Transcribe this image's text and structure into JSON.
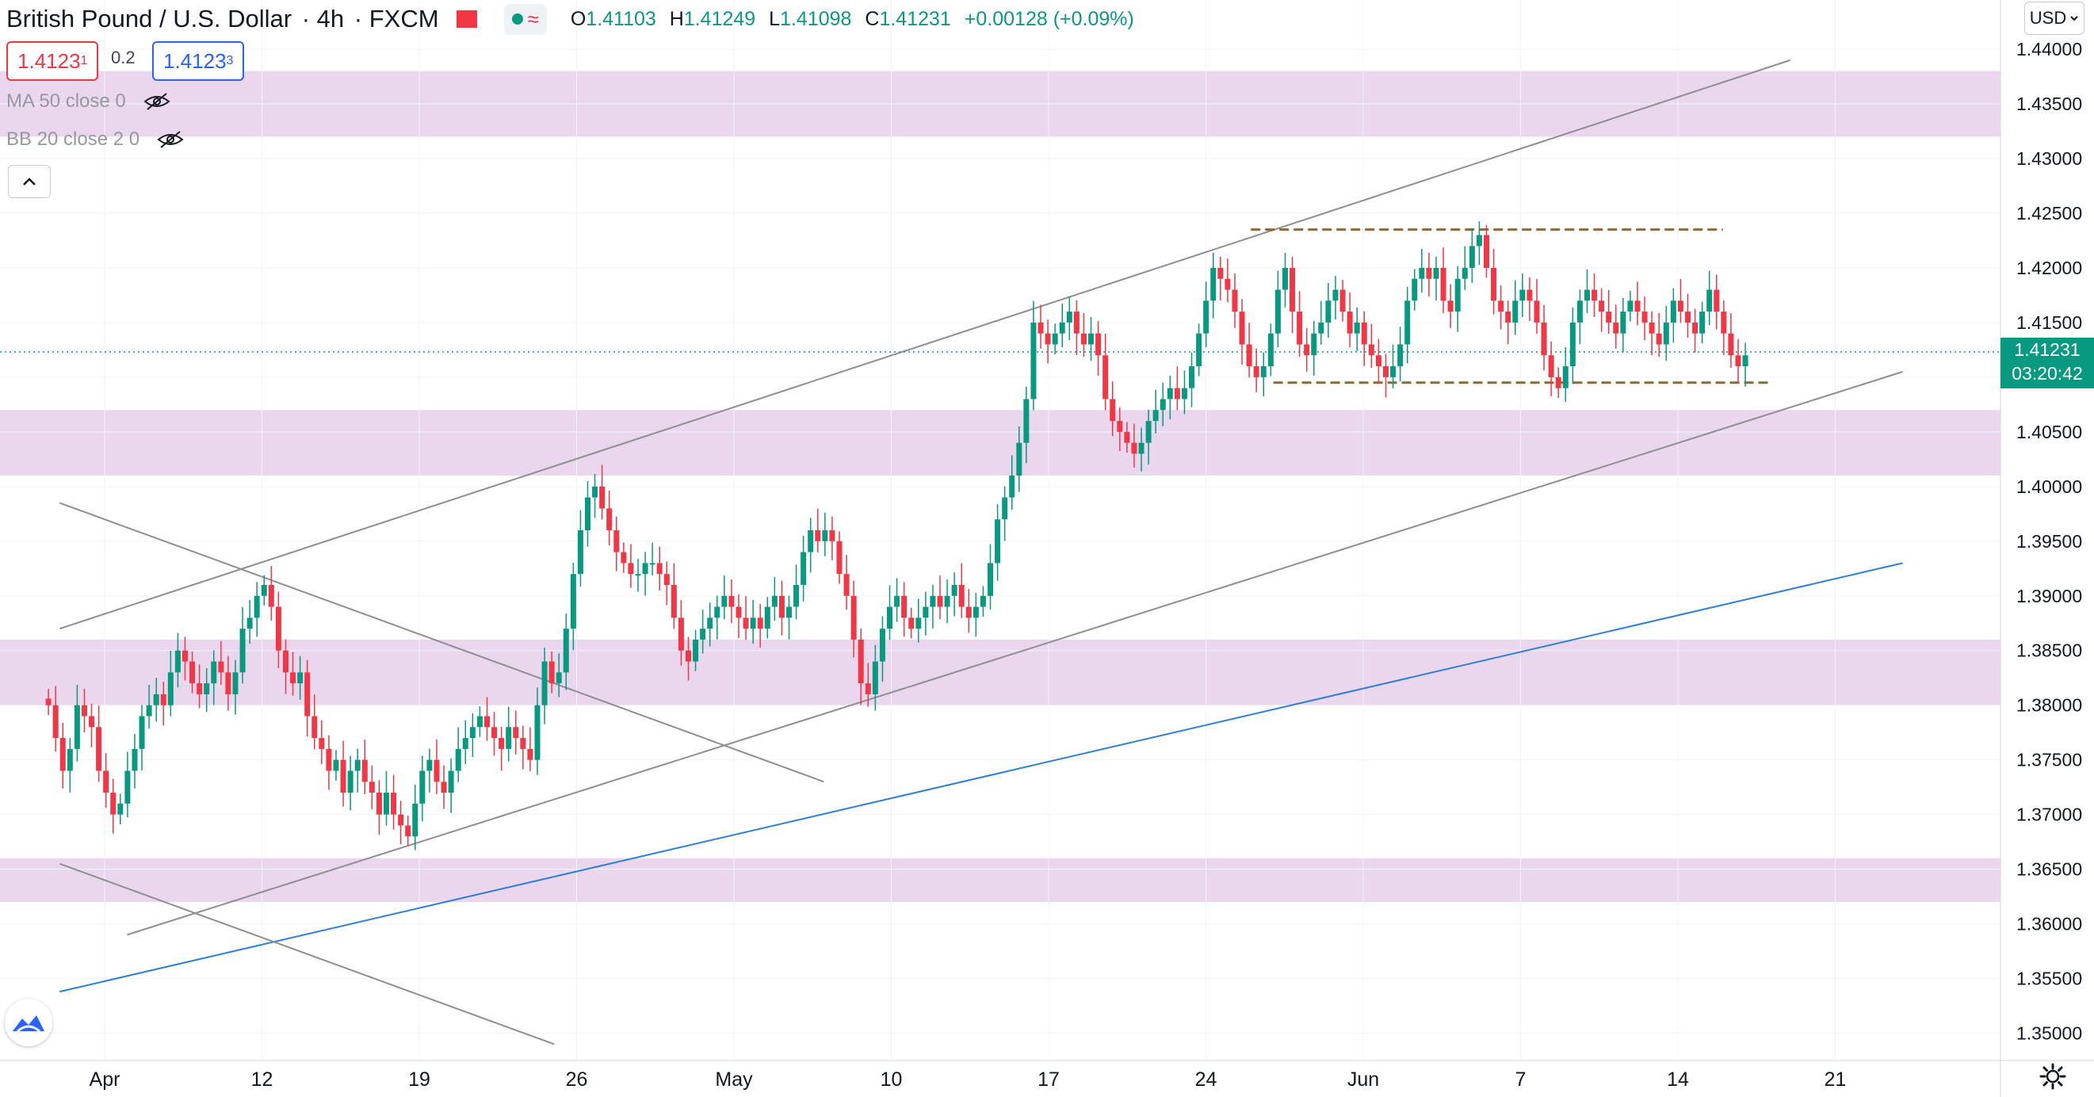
{
  "header": {
    "symbol": "British Pound / U.S. Dollar",
    "interval": "4h",
    "exchange": "FXCM",
    "ohlc": {
      "o_label": "O",
      "o": "1.41103",
      "h_label": "H",
      "h": "1.41249",
      "l_label": "L",
      "l": "1.41098",
      "c_label": "C",
      "c": "1.41231",
      "change": "+0.00128 (+0.09%)"
    }
  },
  "trade": {
    "bid_main": "1.4123",
    "bid_pip": "1",
    "spread": "0.2",
    "ask_main": "1.4123",
    "ask_pip": "3"
  },
  "indicators": {
    "ma": "MA 50 close 0",
    "bb": "BB 20 close 2 0"
  },
  "currency_button": "USD",
  "last_price": {
    "price": "1.41231",
    "countdown": "03:20:42"
  },
  "colors": {
    "up": "#089981",
    "down": "#f23645",
    "zone": "#e8d3ec",
    "blue_line": "#2e7fd6",
    "channel": "#8e8e93",
    "range_line": "#8b6a3a"
  },
  "icons": [
    "eye-off-icon",
    "chevron-up-icon",
    "tradingview-logo-icon",
    "gear-icon",
    "chevron-down-icon"
  ],
  "chart_data": {
    "type": "candlestick",
    "ylim": [
      1.3475,
      1.4445
    ],
    "ytick_labels": [
      "1.44000",
      "1.43500",
      "1.43000",
      "1.42500",
      "1.42000",
      "1.41500",
      "1.41000",
      "1.40500",
      "1.40000",
      "1.39500",
      "1.39000",
      "1.38500",
      "1.38000",
      "1.37500",
      "1.37000",
      "1.36500",
      "1.36000",
      "1.35500",
      "1.35000"
    ],
    "xtick_labels": [
      "Apr",
      "12",
      "19",
      "26",
      "May",
      "10",
      "17",
      "24",
      "Jun",
      "7",
      "14",
      "21"
    ],
    "x_start": "2021-03-29",
    "x_end": "2021-06-21",
    "zones": [
      {
        "low": 1.432,
        "high": 1.438
      },
      {
        "low": 1.401,
        "high": 1.407
      },
      {
        "low": 1.38,
        "high": 1.386
      },
      {
        "low": 1.362,
        "high": 1.366
      }
    ],
    "lines": [
      {
        "type": "channel-upper",
        "from": [
          "2021-03-27",
          1.387
        ],
        "to": [
          "2021-06-12",
          1.439
        ]
      },
      {
        "type": "channel-lower",
        "from": [
          "2021-03-30",
          1.359
        ],
        "to": [
          "2021-06-17",
          1.4105
        ]
      },
      {
        "type": "trend-blue",
        "from": [
          "2021-03-27",
          1.3538
        ],
        "to": [
          "2021-06-17",
          1.393
        ]
      },
      {
        "type": "descending",
        "from": [
          "2021-03-27",
          1.3985
        ],
        "to": [
          "2021-04-30",
          1.373
        ]
      },
      {
        "type": "descending",
        "from": [
          "2021-03-27",
          1.3655
        ],
        "to": [
          "2021-04-18",
          1.349
        ]
      },
      {
        "type": "range-top",
        "dashed": true,
        "from": [
          "2021-05-19",
          1.4235
        ],
        "to": [
          "2021-06-09",
          1.4235
        ]
      },
      {
        "type": "range-bottom",
        "dashed": true,
        "from": [
          "2021-05-20",
          1.4095
        ],
        "to": [
          "2021-06-11",
          1.4095
        ]
      }
    ],
    "last_price": 1.41231,
    "closes": [
      1.38,
      1.377,
      1.374,
      1.376,
      1.38,
      1.379,
      1.378,
      1.374,
      1.372,
      1.37,
      1.371,
      1.374,
      1.376,
      1.379,
      1.38,
      1.381,
      1.38,
      1.383,
      1.385,
      1.384,
      1.382,
      1.381,
      1.382,
      1.384,
      1.383,
      1.381,
      1.383,
      1.387,
      1.388,
      1.39,
      1.391,
      1.389,
      1.385,
      1.383,
      1.382,
      1.383,
      1.379,
      1.377,
      1.376,
      1.374,
      1.375,
      1.372,
      1.374,
      1.375,
      1.373,
      1.372,
      1.37,
      1.372,
      1.37,
      1.369,
      1.368,
      1.371,
      1.374,
      1.375,
      1.373,
      1.372,
      1.374,
      1.376,
      1.377,
      1.378,
      1.379,
      1.378,
      1.377,
      1.376,
      1.378,
      1.377,
      1.376,
      1.375,
      1.38,
      1.384,
      1.382,
      1.383,
      1.387,
      1.392,
      1.396,
      1.399,
      1.4,
      1.398,
      1.396,
      1.394,
      1.393,
      1.392,
      1.392,
      1.393,
      1.393,
      1.392,
      1.391,
      1.388,
      1.385,
      1.384,
      1.386,
      1.387,
      1.388,
      1.389,
      1.39,
      1.389,
      1.388,
      1.387,
      1.388,
      1.387,
      1.389,
      1.39,
      1.388,
      1.389,
      1.391,
      1.394,
      1.396,
      1.395,
      1.396,
      1.395,
      1.392,
      1.39,
      1.386,
      1.382,
      1.381,
      1.384,
      1.387,
      1.389,
      1.39,
      1.388,
      1.387,
      1.388,
      1.389,
      1.39,
      1.389,
      1.39,
      1.391,
      1.389,
      1.388,
      1.389,
      1.39,
      1.393,
      1.397,
      1.399,
      1.401,
      1.404,
      1.408,
      1.415,
      1.414,
      1.413,
      1.414,
      1.415,
      1.416,
      1.414,
      1.413,
      1.414,
      1.412,
      1.408,
      1.406,
      1.405,
      1.404,
      1.403,
      1.404,
      1.406,
      1.407,
      1.408,
      1.409,
      1.408,
      1.409,
      1.411,
      1.414,
      1.417,
      1.42,
      1.419,
      1.418,
      1.416,
      1.413,
      1.411,
      1.41,
      1.411,
      1.414,
      1.418,
      1.42,
      1.416,
      1.413,
      1.412,
      1.414,
      1.415,
      1.417,
      1.418,
      1.416,
      1.414,
      1.415,
      1.413,
      1.412,
      1.411,
      1.41,
      1.411,
      1.413,
      1.417,
      1.419,
      1.42,
      1.419,
      1.42,
      1.417,
      1.416,
      1.419,
      1.42,
      1.422,
      1.423,
      1.42,
      1.417,
      1.416,
      1.415,
      1.417,
      1.418,
      1.417,
      1.415,
      1.412,
      1.41,
      1.409,
      1.411,
      1.415,
      1.417,
      1.418,
      1.417,
      1.416,
      1.415,
      1.414,
      1.416,
      1.417,
      1.416,
      1.415,
      1.414,
      1.413,
      1.415,
      1.417,
      1.416,
      1.415,
      1.414,
      1.416,
      1.418,
      1.416,
      1.414,
      1.412,
      1.411,
      1.412
    ]
  }
}
